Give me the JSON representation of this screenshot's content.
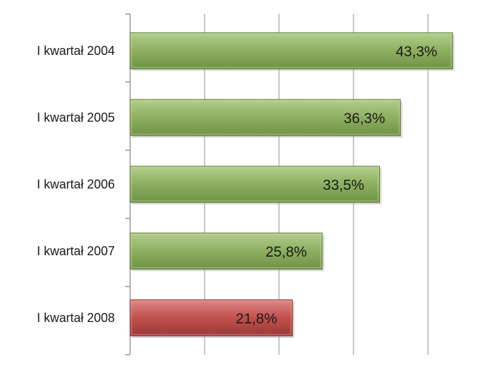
{
  "chart_data": {
    "type": "bar",
    "orientation": "horizontal",
    "categories": [
      "I kwartał 2004",
      "I kwartał 2005",
      "I kwartał 2006",
      "I kwartał 2007",
      "I kwartał 2008"
    ],
    "values": [
      43.3,
      36.3,
      33.5,
      25.8,
      21.8
    ],
    "value_labels": [
      "43,3%",
      "36,3%",
      "33,5%",
      "25,8%",
      "21,8%"
    ],
    "xlim": [
      0,
      50
    ],
    "grid": true,
    "legend": "none",
    "title": "",
    "xlabel": "",
    "ylabel": "",
    "bar_colors": [
      "#87a95c",
      "#87a95c",
      "#87a95c",
      "#87a95c",
      "#c0504d"
    ]
  }
}
